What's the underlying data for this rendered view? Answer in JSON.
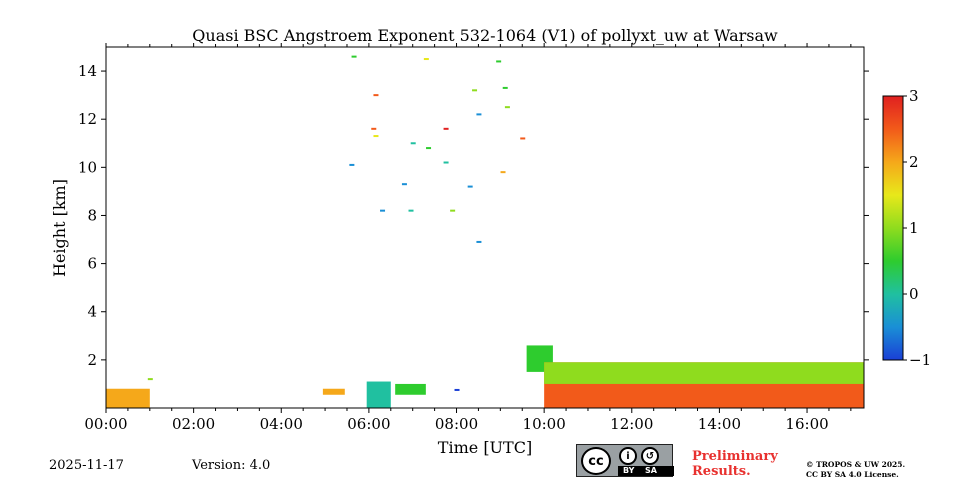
{
  "chart_data": {
    "type": "heatmap",
    "title": "Quasi BSC Angstroem Exponent 532-1064 (V1) of pollyxt_uw at Warsaw",
    "xlabel": "Time [UTC]",
    "ylabel": "Height [km]",
    "x_range_hours": [
      0,
      17.3
    ],
    "y_range_km": [
      0,
      15
    ],
    "x_ticks": [
      {
        "hour": 0,
        "label": "00:00"
      },
      {
        "hour": 2,
        "label": "02:00"
      },
      {
        "hour": 4,
        "label": "04:00"
      },
      {
        "hour": 6,
        "label": "06:00"
      },
      {
        "hour": 8,
        "label": "08:00"
      },
      {
        "hour": 10,
        "label": "10:00"
      },
      {
        "hour": 12,
        "label": "12:00"
      },
      {
        "hour": 14,
        "label": "14:00"
      },
      {
        "hour": 16,
        "label": "16:00"
      }
    ],
    "y_ticks": [
      {
        "km": 2,
        "label": "2"
      },
      {
        "km": 4,
        "label": "4"
      },
      {
        "km": 6,
        "label": "6"
      },
      {
        "km": 8,
        "label": "8"
      },
      {
        "km": 10,
        "label": "10"
      },
      {
        "km": 12,
        "label": "12"
      },
      {
        "km": 14,
        "label": "14"
      }
    ],
    "colorbar": {
      "min": -1,
      "max": 3,
      "ticks": [
        {
          "value": -1,
          "label": "−1"
        },
        {
          "value": 0,
          "label": "0"
        },
        {
          "value": 1,
          "label": "1"
        },
        {
          "value": 2,
          "label": "2"
        },
        {
          "value": 3,
          "label": "3"
        }
      ],
      "colors": [
        "#1a3fd6",
        "#1a8fd6",
        "#20c0a0",
        "#2ecc2e",
        "#8fdc1e",
        "#e8e81a",
        "#f5a81a",
        "#f25a1a",
        "#e02020"
      ]
    },
    "regions": [
      {
        "name": "surface-layer-0000",
        "t0": 0.0,
        "t1": 1.0,
        "h0": 0.0,
        "h1": 0.8,
        "value": 2.2
      },
      {
        "name": "cloud-0515",
        "t0": 4.95,
        "t1": 5.45,
        "h0": 0.55,
        "h1": 0.8,
        "value": 1.8
      },
      {
        "name": "cloud-0600",
        "t0": 5.95,
        "t1": 6.5,
        "h0": 0.0,
        "h1": 1.1,
        "value": -0.2
      },
      {
        "name": "cloud-0630",
        "t0": 6.6,
        "t1": 7.3,
        "h0": 0.55,
        "h1": 1.0,
        "value": 0.7
      },
      {
        "name": "boundary-layer-0945",
        "t0": 9.6,
        "t1": 10.2,
        "h0": 1.5,
        "h1": 2.6,
        "value": 0.6
      },
      {
        "name": "boundary-layer-1000-1715",
        "t0": 10.0,
        "t1": 17.3,
        "h0": 0.0,
        "h1": 1.9,
        "value": 2.4
      },
      {
        "name": "aerosol-cap-1000-1715",
        "t0": 10.0,
        "t1": 17.3,
        "h0": 1.0,
        "h1": 1.9,
        "value": 0.8
      }
    ],
    "sparse_points": [
      {
        "t": 5.65,
        "h": 14.6,
        "value": 0.5
      },
      {
        "t": 6.15,
        "h": 13.0,
        "value": 2.6
      },
      {
        "t": 7.3,
        "h": 14.5,
        "value": 1.3
      },
      {
        "t": 8.4,
        "h": 13.2,
        "value": 0.9
      },
      {
        "t": 8.95,
        "h": 14.4,
        "value": 0.7
      },
      {
        "t": 6.1,
        "h": 11.6,
        "value": 2.7
      },
      {
        "t": 6.15,
        "h": 11.3,
        "value": 1.6
      },
      {
        "t": 7.75,
        "h": 11.6,
        "value": 2.8
      },
      {
        "t": 8.5,
        "h": 12.2,
        "value": -0.6
      },
      {
        "t": 9.5,
        "h": 11.2,
        "value": 2.5
      },
      {
        "t": 7.0,
        "h": 11.0,
        "value": 0.1
      },
      {
        "t": 7.35,
        "h": 10.8,
        "value": 0.3
      },
      {
        "t": 5.6,
        "h": 10.1,
        "value": -0.5
      },
      {
        "t": 7.75,
        "h": 10.2,
        "value": 0.2
      },
      {
        "t": 9.05,
        "h": 9.8,
        "value": 2.1
      },
      {
        "t": 6.8,
        "h": 9.3,
        "value": -0.6
      },
      {
        "t": 8.3,
        "h": 9.2,
        "value": -0.7
      },
      {
        "t": 6.3,
        "h": 8.2,
        "value": -0.4
      },
      {
        "t": 6.95,
        "h": 8.2,
        "value": 0.2
      },
      {
        "t": 7.9,
        "h": 8.2,
        "value": 0.8
      },
      {
        "t": 8.5,
        "h": 6.9,
        "value": -0.5
      },
      {
        "t": 9.1,
        "h": 13.3,
        "value": 0.4
      },
      {
        "t": 9.15,
        "h": 12.5,
        "value": 0.9
      },
      {
        "t": 1.0,
        "h": 1.2,
        "value": 0.8
      },
      {
        "t": 8.0,
        "h": 0.75,
        "value": -0.8
      }
    ]
  },
  "footer": {
    "date": "2025-11-17",
    "version": "Version: 4.0",
    "license_by": "BY",
    "license_sa": "SA",
    "license_cc": "cc",
    "preliminary_line1": "Preliminary",
    "preliminary_line2": "Results.",
    "copyright_line1": "© TROPOS & UW 2025.",
    "copyright_line2": "CC BY SA 4.0 License."
  }
}
